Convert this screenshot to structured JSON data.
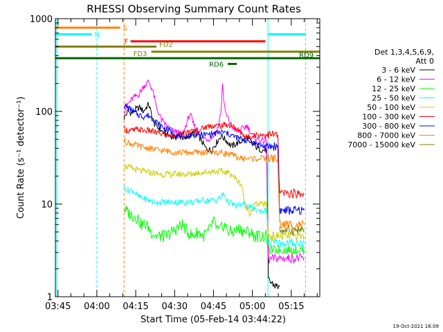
{
  "chart_data": {
    "type": "line",
    "title": "RHESSI Observing Summary Count Rates",
    "xlabel": "Start Time (05-Feb-14 03:44:22)",
    "ylabel": "Count Rate (s⁻¹ detector⁻¹)",
    "yscale": "log",
    "ylim": [
      1,
      1000
    ],
    "xlim_minutes": [
      -1,
      101
    ],
    "x_ticks": [
      {
        "minute": 0,
        "label": "03:45"
      },
      {
        "minute": 15,
        "label": "04:00"
      },
      {
        "minute": 30,
        "label": "04:15"
      },
      {
        "minute": 45,
        "label": "04:30"
      },
      {
        "minute": 60,
        "label": "04:45"
      },
      {
        "minute": 75,
        "label": "05:00"
      },
      {
        "minute": 90,
        "label": "05:15"
      }
    ],
    "y_ticks": [
      {
        "value": 1,
        "label": "1"
      },
      {
        "value": 10,
        "label": "10"
      },
      {
        "value": 100,
        "label": "100"
      },
      {
        "value": 1000,
        "label": "1000"
      }
    ],
    "legend": {
      "placement": "right",
      "header": [
        "Det 1,3,4,5,6,9,",
        "Att 0"
      ]
    },
    "series": [
      {
        "name": "3 - 6 keV",
        "color": "#000000",
        "points": [
          [
            25.5,
            85
          ],
          [
            27,
            100
          ],
          [
            28.5,
            95
          ],
          [
            30,
            105
          ],
          [
            31.5,
            110
          ],
          [
            33,
            100
          ],
          [
            35,
            120
          ],
          [
            37,
            75
          ],
          [
            39,
            65
          ],
          [
            41,
            58
          ],
          [
            43,
            55
          ],
          [
            45,
            52
          ],
          [
            47,
            55
          ],
          [
            49,
            50
          ],
          [
            51,
            55
          ],
          [
            53,
            60
          ],
          [
            55,
            50
          ],
          [
            57,
            40
          ],
          [
            59,
            38
          ],
          [
            61,
            45
          ],
          [
            63,
            55
          ],
          [
            65,
            48
          ],
          [
            67,
            42
          ],
          [
            69,
            45
          ],
          [
            71,
            48
          ],
          [
            73,
            52
          ],
          [
            75,
            45
          ],
          [
            77,
            40
          ],
          [
            79,
            38
          ],
          [
            80.5,
            38
          ],
          [
            81.2,
            1.5
          ],
          [
            84,
            1.3
          ],
          [
            85.5,
            1.3
          ]
        ]
      },
      {
        "name": "6 - 12 keV",
        "color": "#ff00ff",
        "points": [
          [
            25.5,
            100
          ],
          [
            27,
            120
          ],
          [
            29,
            140
          ],
          [
            31,
            150
          ],
          [
            33,
            185
          ],
          [
            35,
            210
          ],
          [
            36.5,
            170
          ],
          [
            38,
            110
          ],
          [
            40,
            80
          ],
          [
            42,
            70
          ],
          [
            44,
            62
          ],
          [
            46,
            60
          ],
          [
            48,
            55
          ],
          [
            50,
            80
          ],
          [
            51,
            95
          ],
          [
            52,
            75
          ],
          [
            54,
            60
          ],
          [
            56,
            52
          ],
          [
            58,
            50
          ],
          [
            60,
            55
          ],
          [
            62,
            70
          ],
          [
            63,
            110
          ],
          [
            63.5,
            210
          ],
          [
            64,
            120
          ],
          [
            65,
            90
          ],
          [
            67,
            70
          ],
          [
            69,
            60
          ],
          [
            71,
            65
          ],
          [
            73,
            70
          ],
          [
            75,
            55
          ],
          [
            77,
            50
          ],
          [
            79,
            48
          ],
          [
            80.5,
            48
          ],
          [
            81.2,
            2.5
          ],
          [
            84,
            2.6
          ],
          [
            86,
            2.6
          ],
          [
            89,
            2.6
          ],
          [
            95,
            2.6
          ]
        ]
      },
      {
        "name": "12 - 25 keV",
        "color": "#00ff00",
        "points": [
          [
            25.5,
            9
          ],
          [
            27,
            8
          ],
          [
            29,
            7.5
          ],
          [
            31,
            7
          ],
          [
            32,
            6
          ],
          [
            34,
            6
          ],
          [
            36,
            5
          ],
          [
            38,
            4.5
          ],
          [
            40,
            4.5
          ],
          [
            42,
            4.5
          ],
          [
            44,
            5
          ],
          [
            46,
            5.5
          ],
          [
            48,
            6
          ],
          [
            50,
            5
          ],
          [
            52,
            4.5
          ],
          [
            54,
            5
          ],
          [
            56,
            4.5
          ],
          [
            58,
            5
          ],
          [
            60,
            6.5
          ],
          [
            62,
            5
          ],
          [
            64,
            6
          ],
          [
            66,
            5
          ],
          [
            68,
            5
          ],
          [
            70,
            5.5
          ],
          [
            72,
            5
          ],
          [
            74,
            5
          ],
          [
            76,
            4.5
          ],
          [
            78,
            4.5
          ],
          [
            80.5,
            4.5
          ],
          [
            81.2,
            3.2
          ],
          [
            84,
            3.2
          ],
          [
            87,
            3.2
          ],
          [
            89,
            3.2
          ],
          [
            95,
            3.2
          ]
        ]
      },
      {
        "name": "25 - 50 keV",
        "color": "#00ffff",
        "points": [
          [
            25.5,
            15
          ],
          [
            27,
            14
          ],
          [
            29,
            14
          ],
          [
            31,
            12
          ],
          [
            33,
            11.5
          ],
          [
            35,
            11
          ],
          [
            37,
            10.5
          ],
          [
            39,
            10.5
          ],
          [
            41,
            10.5
          ],
          [
            43,
            10.5
          ],
          [
            45,
            10.5
          ],
          [
            47,
            10.5
          ],
          [
            49,
            10.5
          ],
          [
            51,
            10.5
          ],
          [
            53,
            10.5
          ],
          [
            55,
            11
          ],
          [
            57,
            11
          ],
          [
            59,
            11
          ],
          [
            61,
            11
          ],
          [
            63,
            12
          ],
          [
            64,
            13
          ],
          [
            65,
            11
          ],
          [
            67,
            10
          ],
          [
            69,
            9.5
          ],
          [
            71,
            10
          ],
          [
            73,
            9.5
          ],
          [
            75,
            9
          ],
          [
            77,
            8.5
          ],
          [
            79,
            8.5
          ],
          [
            80.5,
            8.5
          ],
          [
            81.2,
            3.8
          ],
          [
            84,
            3.8
          ],
          [
            87,
            3.8
          ],
          [
            89,
            3.8
          ],
          [
            95,
            3.8
          ]
        ]
      },
      {
        "name": "50 - 100 keV",
        "color": "#cccc00",
        "points": [
          [
            25.5,
            26
          ],
          [
            27,
            25
          ],
          [
            29,
            24
          ],
          [
            31,
            23
          ],
          [
            33,
            22.5
          ],
          [
            35,
            22
          ],
          [
            37,
            21.5
          ],
          [
            39,
            21
          ],
          [
            41,
            21
          ],
          [
            43,
            21
          ],
          [
            45,
            21
          ],
          [
            47,
            21
          ],
          [
            49,
            21
          ],
          [
            51,
            21
          ],
          [
            53,
            21.5
          ],
          [
            55,
            22
          ],
          [
            57,
            22
          ],
          [
            59,
            22.5
          ],
          [
            61,
            22.5
          ],
          [
            63,
            22.5
          ],
          [
            65,
            22
          ],
          [
            67,
            21
          ],
          [
            69,
            18
          ],
          [
            71,
            16
          ],
          [
            72,
            10
          ],
          [
            74,
            8
          ],
          [
            76,
            10
          ],
          [
            78,
            10
          ],
          [
            80.5,
            10
          ],
          [
            81.2,
            4.5
          ],
          [
            84,
            4.5
          ],
          [
            87,
            4.5
          ],
          [
            89,
            4.5
          ],
          [
            95,
            4.5
          ]
        ]
      },
      {
        "name": "100 - 300 keV",
        "color": "#ff0000",
        "points": [
          [
            25.5,
            65
          ],
          [
            27,
            62
          ],
          [
            29,
            62
          ],
          [
            31,
            64
          ],
          [
            33,
            62
          ],
          [
            35,
            62
          ],
          [
            37,
            60
          ],
          [
            39,
            58
          ],
          [
            41,
            56
          ],
          [
            43,
            55
          ],
          [
            45,
            55
          ],
          [
            47,
            56
          ],
          [
            49,
            58
          ],
          [
            51,
            60
          ],
          [
            53,
            62
          ],
          [
            55,
            64
          ],
          [
            57,
            68
          ],
          [
            59,
            70
          ],
          [
            61,
            70
          ],
          [
            63,
            70
          ],
          [
            65,
            72
          ],
          [
            67,
            70
          ],
          [
            69,
            64
          ],
          [
            71,
            58
          ],
          [
            73,
            52
          ],
          [
            75,
            55
          ],
          [
            77,
            56
          ],
          [
            79,
            56
          ],
          [
            80.5,
            56
          ],
          [
            81.2,
            56
          ],
          [
            84,
            56
          ],
          [
            84.8,
            56
          ],
          [
            85.5,
            13
          ],
          [
            88,
            13
          ],
          [
            90,
            13
          ],
          [
            95,
            13
          ]
        ]
      },
      {
        "name": "300 - 800 keV",
        "color": "#0000ff",
        "points": [
          [
            25.5,
            115
          ],
          [
            27,
            110
          ],
          [
            29,
            100
          ],
          [
            31,
            92
          ],
          [
            33,
            88
          ],
          [
            35,
            90
          ],
          [
            37,
            82
          ],
          [
            39,
            72
          ],
          [
            41,
            66
          ],
          [
            43,
            62
          ],
          [
            45,
            56
          ],
          [
            47,
            54
          ],
          [
            49,
            54
          ],
          [
            51,
            55
          ],
          [
            53,
            56
          ],
          [
            55,
            56
          ],
          [
            57,
            56
          ],
          [
            59,
            57
          ],
          [
            61,
            58
          ],
          [
            63,
            60
          ],
          [
            65,
            58
          ],
          [
            67,
            55
          ],
          [
            69,
            52
          ],
          [
            71,
            50
          ],
          [
            73,
            48
          ],
          [
            75,
            46
          ],
          [
            77,
            45
          ],
          [
            79,
            42
          ],
          [
            80.5,
            42
          ],
          [
            81.2,
            42
          ],
          [
            84,
            42
          ],
          [
            84.8,
            42
          ],
          [
            85.5,
            8.5
          ],
          [
            88,
            8.5
          ],
          [
            90,
            8.5
          ],
          [
            95,
            8.5
          ]
        ]
      },
      {
        "name": "800 - 7000 keV",
        "color": "#ff8000",
        "points": [
          [
            25.5,
            48
          ],
          [
            27,
            46
          ],
          [
            29,
            44
          ],
          [
            31,
            42
          ],
          [
            33,
            41
          ],
          [
            35,
            40
          ],
          [
            37,
            39
          ],
          [
            39,
            38
          ],
          [
            41,
            37.5
          ],
          [
            43,
            37
          ],
          [
            45,
            36.5
          ],
          [
            47,
            36
          ],
          [
            49,
            36
          ],
          [
            51,
            36
          ],
          [
            53,
            36
          ],
          [
            55,
            36
          ],
          [
            57,
            36
          ],
          [
            59,
            36
          ],
          [
            61,
            36
          ],
          [
            63,
            36
          ],
          [
            65,
            35
          ],
          [
            67,
            34
          ],
          [
            69,
            32
          ],
          [
            71,
            31
          ],
          [
            73,
            31
          ],
          [
            75,
            31
          ],
          [
            77,
            31
          ],
          [
            79,
            31
          ],
          [
            80.5,
            31
          ],
          [
            81.2,
            31
          ],
          [
            84,
            31
          ],
          [
            84.8,
            31
          ],
          [
            85.5,
            6
          ],
          [
            88,
            6
          ],
          [
            90,
            6
          ],
          [
            95,
            6
          ]
        ]
      },
      {
        "name": "7000 - 15000 keV",
        "color": "#808000",
        "points": [
          [
            85.5,
            5.2
          ],
          [
            88,
            5.2
          ],
          [
            90,
            5.2
          ],
          [
            95,
            5.2
          ]
        ]
      }
    ],
    "annotations": [
      {
        "label": "S",
        "color": "#ff8000",
        "y": 800,
        "x_start": -1,
        "x_end": 24
      },
      {
        "label": "N",
        "color": "#00ffff",
        "y": 680,
        "x_start": -1,
        "x_end": 13
      },
      {
        "label": "F",
        "color": "#ff0000",
        "y": 570,
        "x_start": 28,
        "x_end": 80
      },
      {
        "label": "FD2",
        "color": "#808000",
        "y": 500,
        "x_start": -1,
        "x_end": 38
      },
      {
        "label": "FD3",
        "color": "#808000",
        "y": 440,
        "x_start": 36,
        "x_end": 101
      },
      {
        "label": "RD9",
        "color": "#006400",
        "y": 375,
        "x_start": -1,
        "x_end": 101
      },
      {
        "label": "RD6",
        "color": "#006400",
        "y": 325,
        "x_start": 65.5,
        "x_end": 69
      }
    ],
    "vertical_lines": [
      {
        "minute": -0.5,
        "color": "#00ffff",
        "style": "solid"
      },
      {
        "minute": 15,
        "color": "#00ffff",
        "style": "dashed"
      },
      {
        "minute": 25.5,
        "color": "#ff8000",
        "style": "dashed"
      },
      {
        "minute": 81,
        "color": "#00ffff",
        "style": "solid"
      },
      {
        "minute": 95.5,
        "color": "#00ffff",
        "style": "dashed"
      }
    ],
    "late_segments": [
      {
        "color": "#00ffff",
        "y": 680,
        "x_start": 81,
        "x_end": 95.5
      }
    ],
    "footer_timestamp": "19-Oct-2021 16:09"
  }
}
